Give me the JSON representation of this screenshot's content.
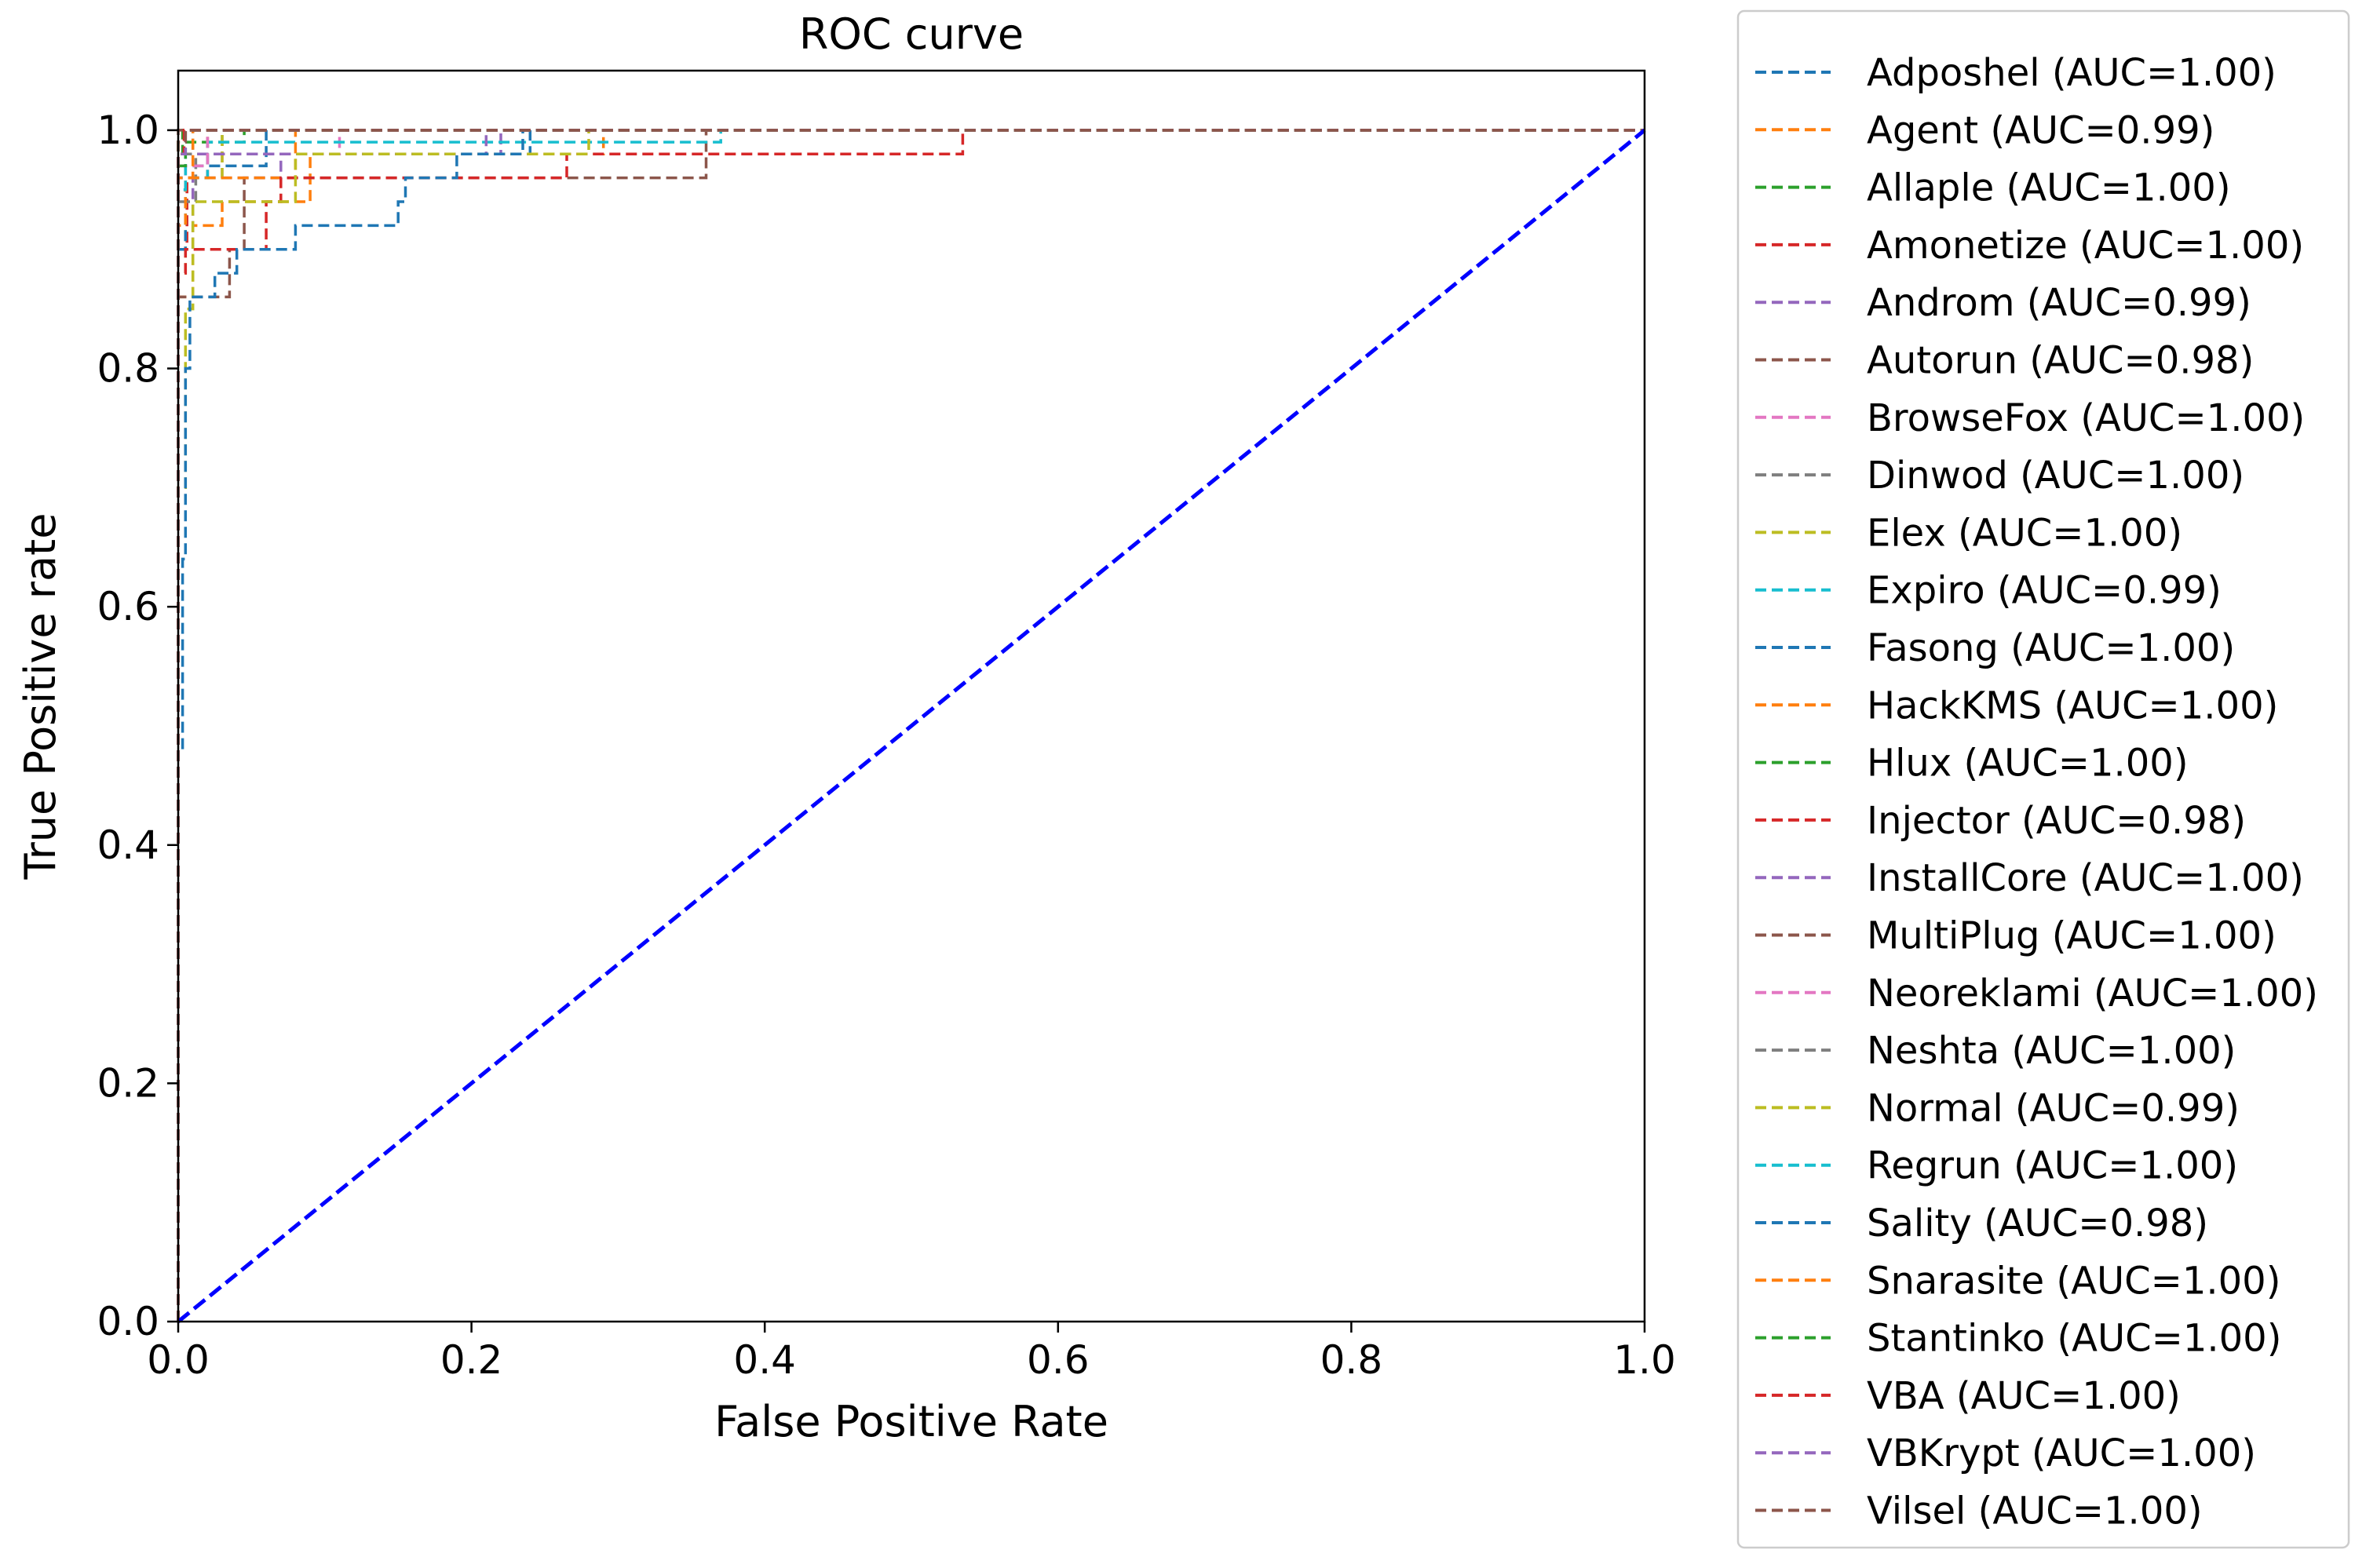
{
  "chart_data": {
    "type": "line",
    "title": "ROC curve",
    "xlabel": "False Positive Rate",
    "ylabel": "True Positive rate",
    "xlim": [
      0.0,
      1.0
    ],
    "ylim": [
      0.0,
      1.05
    ],
    "xticks": [
      "0.0",
      "0.2",
      "0.4",
      "0.6",
      "0.8",
      "1.0"
    ],
    "yticks": [
      "0.0",
      "0.2",
      "0.4",
      "0.6",
      "0.8",
      "1.0"
    ],
    "grid": false,
    "legend_position": "outside right",
    "line_style": "dashed",
    "reference_line": {
      "x": [
        0,
        1
      ],
      "y": [
        0,
        1
      ],
      "color": "#0000ff"
    },
    "series": [
      {
        "name": "Adposhel (AUC=1.00)",
        "color": "#1f77b4",
        "x": [
          0,
          0,
          0.005,
          0.005,
          0.24,
          0.24,
          1
        ],
        "y": [
          0,
          0.96,
          0.96,
          0.98,
          0.98,
          1.0,
          1.0
        ]
      },
      {
        "name": "Agent (AUC=0.99)",
        "color": "#ff7f0e",
        "x": [
          0,
          0,
          0.01,
          0.01,
          0.03,
          0.03,
          0.09,
          0.09,
          0.29,
          0.29,
          1
        ],
        "y": [
          0,
          0.86,
          0.86,
          0.92,
          0.92,
          0.94,
          0.94,
          0.98,
          0.98,
          1.0,
          1.0
        ]
      },
      {
        "name": "Allaple (AUC=1.00)",
        "color": "#2ca02c",
        "x": [
          0,
          0,
          0.045,
          0.045,
          1
        ],
        "y": [
          0,
          0.99,
          0.99,
          1.0,
          1.0
        ]
      },
      {
        "name": "Amonetize (AUC=1.00)",
        "color": "#d62728",
        "x": [
          0,
          0,
          0.006,
          0.006,
          0.02,
          0.02,
          1
        ],
        "y": [
          0,
          0.9,
          0.9,
          0.96,
          0.96,
          1.0,
          1.0
        ]
      },
      {
        "name": "Androm (AUC=0.99)",
        "color": "#9467bd",
        "x": [
          0,
          0,
          0.01,
          0.01,
          0.07,
          0.07,
          0.22,
          0.22,
          1
        ],
        "y": [
          0,
          0.9,
          0.9,
          0.96,
          0.96,
          0.98,
          0.98,
          1.0,
          1.0
        ]
      },
      {
        "name": "Autorun (AUC=0.98)",
        "color": "#8c564b",
        "x": [
          0,
          0,
          0.02,
          0.02,
          0.035,
          0.035,
          0.045,
          0.045,
          0.36,
          0.36,
          1
        ],
        "y": [
          0,
          0.86,
          0.86,
          0.86,
          0.86,
          0.9,
          0.9,
          0.96,
          0.96,
          1.0,
          1.0
        ]
      },
      {
        "name": "BrowseFox (AUC=1.00)",
        "color": "#e377c2",
        "x": [
          0,
          0,
          0.03,
          0.03,
          0.11,
          0.11,
          1
        ],
        "y": [
          0,
          0.96,
          0.96,
          0.98,
          0.98,
          1.0,
          1.0
        ]
      },
      {
        "name": "Dinwod (AUC=1.00)",
        "color": "#7f7f7f",
        "x": [
          0,
          0,
          0.012,
          0.012,
          0.03,
          0.03,
          1
        ],
        "y": [
          0,
          0.94,
          0.94,
          0.98,
          0.98,
          1.0,
          1.0
        ]
      },
      {
        "name": "Elex (AUC=1.00)",
        "color": "#bcbd22",
        "x": [
          0,
          0,
          0.005,
          0.005,
          0.03,
          0.03,
          1
        ],
        "y": [
          0,
          0.88,
          0.88,
          0.96,
          0.96,
          1.0,
          1.0
        ]
      },
      {
        "name": "Expiro (AUC=0.99)",
        "color": "#17becf",
        "x": [
          0,
          0,
          0.02,
          0.02,
          0.37,
          0.37,
          1
        ],
        "y": [
          0,
          0.96,
          0.96,
          0.99,
          0.99,
          1.0,
          1.0
        ]
      },
      {
        "name": "Fasong (AUC=1.00)",
        "color": "#1f77b4",
        "x": [
          0,
          0,
          0.005,
          0.005,
          0.06,
          0.06,
          1
        ],
        "y": [
          0,
          0.9,
          0.9,
          0.97,
          0.97,
          1.0,
          1.0
        ]
      },
      {
        "name": "HackKMS (AUC=1.00)",
        "color": "#ff7f0e",
        "x": [
          0,
          0,
          0.005,
          0.005,
          0.08,
          0.08,
          1
        ],
        "y": [
          0,
          0.92,
          0.92,
          0.96,
          0.96,
          1.0,
          1.0
        ]
      },
      {
        "name": "Hlux (AUC=1.00)",
        "color": "#2ca02c",
        "x": [
          0,
          0,
          0.003,
          0.003,
          1
        ],
        "y": [
          0,
          0.98,
          0.98,
          1.0,
          1.0
        ]
      },
      {
        "name": "Injector (AUC=0.98)",
        "color": "#d62728",
        "x": [
          0,
          0,
          0.005,
          0.005,
          0.06,
          0.06,
          0.07,
          0.07,
          0.265,
          0.265,
          0.535,
          0.535,
          1
        ],
        "y": [
          0,
          0.88,
          0.88,
          0.9,
          0.9,
          0.94,
          0.94,
          0.96,
          0.96,
          0.98,
          0.98,
          1.0,
          1.0
        ]
      },
      {
        "name": "InstallCore (AUC=1.00)",
        "color": "#9467bd",
        "x": [
          0,
          0,
          0.005,
          0.005,
          0.21,
          0.21,
          1
        ],
        "y": [
          0,
          0.96,
          0.96,
          0.98,
          0.98,
          1.0,
          1.0
        ]
      },
      {
        "name": "MultiPlug (AUC=1.00)",
        "color": "#8c564b",
        "x": [
          0,
          0,
          1
        ],
        "y": [
          0,
          1.0,
          1.0
        ]
      },
      {
        "name": "Neoreklami (AUC=1.00)",
        "color": "#e377c2",
        "x": [
          0,
          0,
          0.02,
          0.02,
          1
        ],
        "y": [
          0,
          0.97,
          0.97,
          1.0,
          1.0
        ]
      },
      {
        "name": "Neshta (AUC=1.00)",
        "color": "#7f7f7f",
        "x": [
          0,
          0,
          0.01,
          0.01,
          1
        ],
        "y": [
          0,
          0.98,
          0.98,
          1.0,
          1.0
        ]
      },
      {
        "name": "Normal (AUC=0.99)",
        "color": "#bcbd22",
        "x": [
          0,
          0,
          0.005,
          0.005,
          0.01,
          0.01,
          0.08,
          0.08,
          0.28,
          0.28,
          1
        ],
        "y": [
          0,
          0.7,
          0.7,
          0.85,
          0.85,
          0.94,
          0.94,
          0.98,
          0.98,
          1.0,
          1.0
        ]
      },
      {
        "name": "Regrun (AUC=1.00)",
        "color": "#17becf",
        "x": [
          0,
          0,
          0.005,
          0.005,
          1
        ],
        "y": [
          0,
          0.95,
          0.95,
          1.0,
          1.0
        ]
      },
      {
        "name": "Sality (AUC=0.98)",
        "color": "#1f77b4",
        "x": [
          0,
          0,
          0.003,
          0.003,
          0.005,
          0.005,
          0.008,
          0.008,
          0.025,
          0.025,
          0.04,
          0.04,
          0.08,
          0.08,
          0.15,
          0.15,
          0.155,
          0.155,
          0.19,
          0.19,
          0.235,
          0.235,
          1
        ],
        "y": [
          0,
          0.48,
          0.48,
          0.64,
          0.64,
          0.8,
          0.8,
          0.86,
          0.86,
          0.88,
          0.88,
          0.9,
          0.9,
          0.92,
          0.92,
          0.94,
          0.94,
          0.96,
          0.96,
          0.98,
          0.98,
          1.0,
          1.0
        ]
      },
      {
        "name": "Snarasite (AUC=1.00)",
        "color": "#ff7f0e",
        "x": [
          0,
          0,
          0.01,
          0.01,
          1
        ],
        "y": [
          0,
          0.96,
          0.96,
          1.0,
          1.0
        ]
      },
      {
        "name": "Stantinko (AUC=1.00)",
        "color": "#2ca02c",
        "x": [
          0,
          0,
          0.005,
          0.005,
          1
        ],
        "y": [
          0,
          0.97,
          0.97,
          1.0,
          1.0
        ]
      },
      {
        "name": "VBA (AUC=1.00)",
        "color": "#d62728",
        "x": [
          0,
          0,
          0.004,
          0.004,
          1
        ],
        "y": [
          0,
          0.98,
          0.98,
          1.0,
          1.0
        ]
      },
      {
        "name": "VBKrypt (AUC=1.00)",
        "color": "#9467bd",
        "x": [
          0,
          0,
          0.005,
          0.005,
          1
        ],
        "y": [
          0,
          0.98,
          0.98,
          1.0,
          1.0
        ]
      },
      {
        "name": "Vilsel (AUC=1.00)",
        "color": "#8c564b",
        "x": [
          0,
          0,
          0.005,
          0.005,
          1
        ],
        "y": [
          0,
          0.99,
          0.99,
          1.0,
          1.0
        ]
      }
    ]
  }
}
